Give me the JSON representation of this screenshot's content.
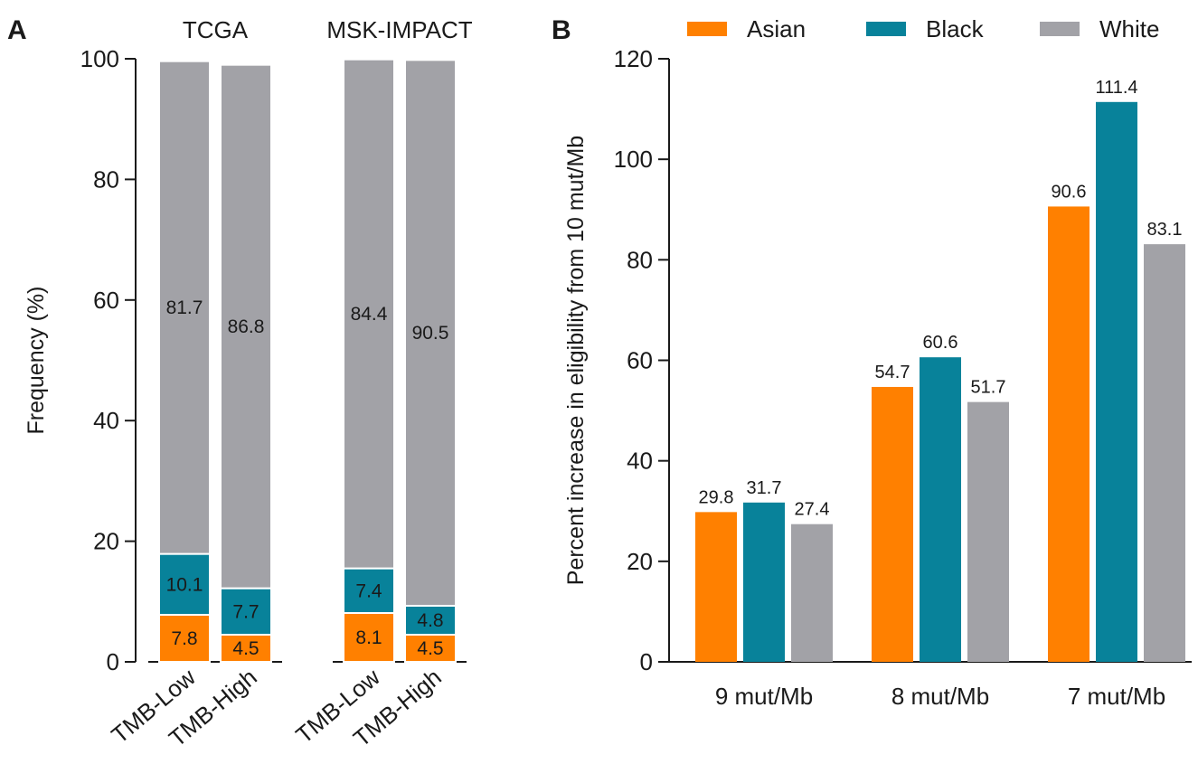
{
  "colors": {
    "asian": "#ff8000",
    "black": "#08829a",
    "white": "#a2a2a7",
    "axis": "#1a1a1a"
  },
  "chart_data": [
    {
      "panel": "A",
      "type": "bar",
      "stacked": true,
      "ylabel": "Frequency (%)",
      "ylim": [
        0,
        100
      ],
      "yticks": [
        0,
        20,
        40,
        60,
        80,
        100
      ],
      "groups": [
        {
          "title": "TCGA",
          "categories": [
            "TMB-Low",
            "TMB-High"
          ]
        },
        {
          "title": "MSK-IMPACT",
          "categories": [
            "TMB-Low",
            "TMB-High"
          ]
        }
      ],
      "series": [
        {
          "key": "asian",
          "values": [
            7.8,
            4.5,
            8.1,
            4.5
          ],
          "labels": [
            "7.8",
            "4.5",
            "8.1",
            "4.5"
          ]
        },
        {
          "key": "black",
          "values": [
            10.1,
            7.7,
            7.4,
            4.8
          ],
          "labels": [
            "10.1",
            "7.7",
            "7.4",
            "4.8"
          ]
        },
        {
          "key": "white",
          "values": [
            81.7,
            86.8,
            84.4,
            90.5
          ],
          "labels": [
            "81.7",
            "86.8",
            "84.4",
            "90.5"
          ]
        }
      ]
    },
    {
      "panel": "B",
      "type": "bar",
      "stacked": false,
      "ylabel": "Percent increase in eligibility from 10 mut/Mb",
      "ylim": [
        0,
        120
      ],
      "yticks": [
        0,
        20,
        40,
        60,
        80,
        100,
        120
      ],
      "categories": [
        "9 mut/Mb",
        "8 mut/Mb",
        "7 mut/Mb"
      ],
      "legend_position": "top",
      "series": [
        {
          "key": "asian",
          "name": "Asian",
          "values": [
            29.8,
            54.7,
            90.6
          ],
          "labels": [
            "29.8",
            "54.7",
            "90.6"
          ]
        },
        {
          "key": "black",
          "name": "Black",
          "values": [
            31.7,
            60.6,
            111.4
          ],
          "labels": [
            "31.7",
            "60.6",
            "111.4"
          ]
        },
        {
          "key": "white",
          "name": "White",
          "values": [
            27.4,
            51.7,
            83.1
          ],
          "labels": [
            "27.4",
            "51.7",
            "83.1"
          ]
        }
      ]
    }
  ]
}
